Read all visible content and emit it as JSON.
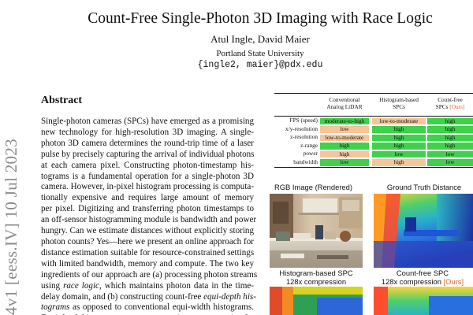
{
  "arxiv_stamp": "4v1  [eess.IV]  10 Jul 2023",
  "paper": {
    "title": "Count-Free Single-Photon 3D Imaging with Race Logic",
    "authors": "Atul Ingle, David Maier",
    "affiliation": "Portland State University",
    "email": "{ingle2, maier}@pdx.edu"
  },
  "abstract": {
    "heading": "Abstract",
    "lines": [
      "Single-photon cameras (SPCs) have emerged as a promising",
      "new technology for high-resolution 3D imaging.  A single-",
      "photon 3D camera determines the round-trip time of a laser",
      "pulse by precisely capturing the arrival of individual photons",
      "at each camera pixel.   Constructing photon-timestamp his-",
      "tograms is a fundamental operation for a single-photon 3D",
      "camera.  However, in-pixel histogram processing is computa-",
      "tionally expensive and requires large amount of memory",
      "per pixel.  Digitizing and transferring photon timestamps to",
      "an off-sensor histogramming module is bandwidth and power",
      "hungry.  Can we estimate distances without explicitly storing",
      "photon counts? Yes—here we present an online approach for",
      "distance estimation suitable for resource-constrained settings",
      "with limited bandwidth, memory and compute. The two key",
      "ingredients of our approach are (a) processing photon streams",
      "using race logic, which maintains photon data in the time-",
      "delay domain, and (b) constructing count-free equi-depth his-",
      "tograms as opposed to conventional equi-width histograms.",
      "Equi-depth histograms are a more succinct representation for"
    ]
  },
  "table": {
    "columns": [
      [
        "Conventional",
        "Analog LiDAR"
      ],
      [
        "Histogram-based",
        "SPCs"
      ],
      [
        "Count-free",
        "SPCs"
      ]
    ],
    "ours_tag": "[Ours]",
    "rows": [
      {
        "label": "FPS (speed)",
        "cells": [
          "moderate-to-high",
          "low-to-moderate",
          "high"
        ]
      },
      {
        "label": "x/y-resolution",
        "cells": [
          "low",
          "high",
          "high"
        ]
      },
      {
        "label": "z-resolution",
        "cells": [
          "low-to-moderate",
          "high",
          "high"
        ]
      },
      {
        "label": "z-range",
        "cells": [
          "high",
          "high",
          "high"
        ]
      },
      {
        "label": "power",
        "cells": [
          "high",
          "low",
          "low"
        ]
      },
      {
        "label": "bandwidth",
        "cells": [
          "low",
          "high",
          "low"
        ]
      }
    ],
    "rating_colors": {
      "high": "#3fd14a",
      "moderate-to-high": "#3fd14a",
      "low-to-moderate": "#f5c69a",
      "low": "#f5c69a"
    },
    "inverted_rows": [
      "power",
      "bandwidth"
    ]
  },
  "images": {
    "rgb_title": "RGB Image (Rendered)",
    "gt_title": "Ground Truth Distance",
    "hist_title_1": "Histogram-based SPC",
    "hist_title_2": "128x compression",
    "cf_title_1": "Count-free SPC",
    "cf_title_2": "128x compression",
    "cf_ours": "[Ours]"
  },
  "colors": {
    "accent_ours": "#e0692a",
    "good": "#3fd14a",
    "bad": "#f5c69a"
  }
}
